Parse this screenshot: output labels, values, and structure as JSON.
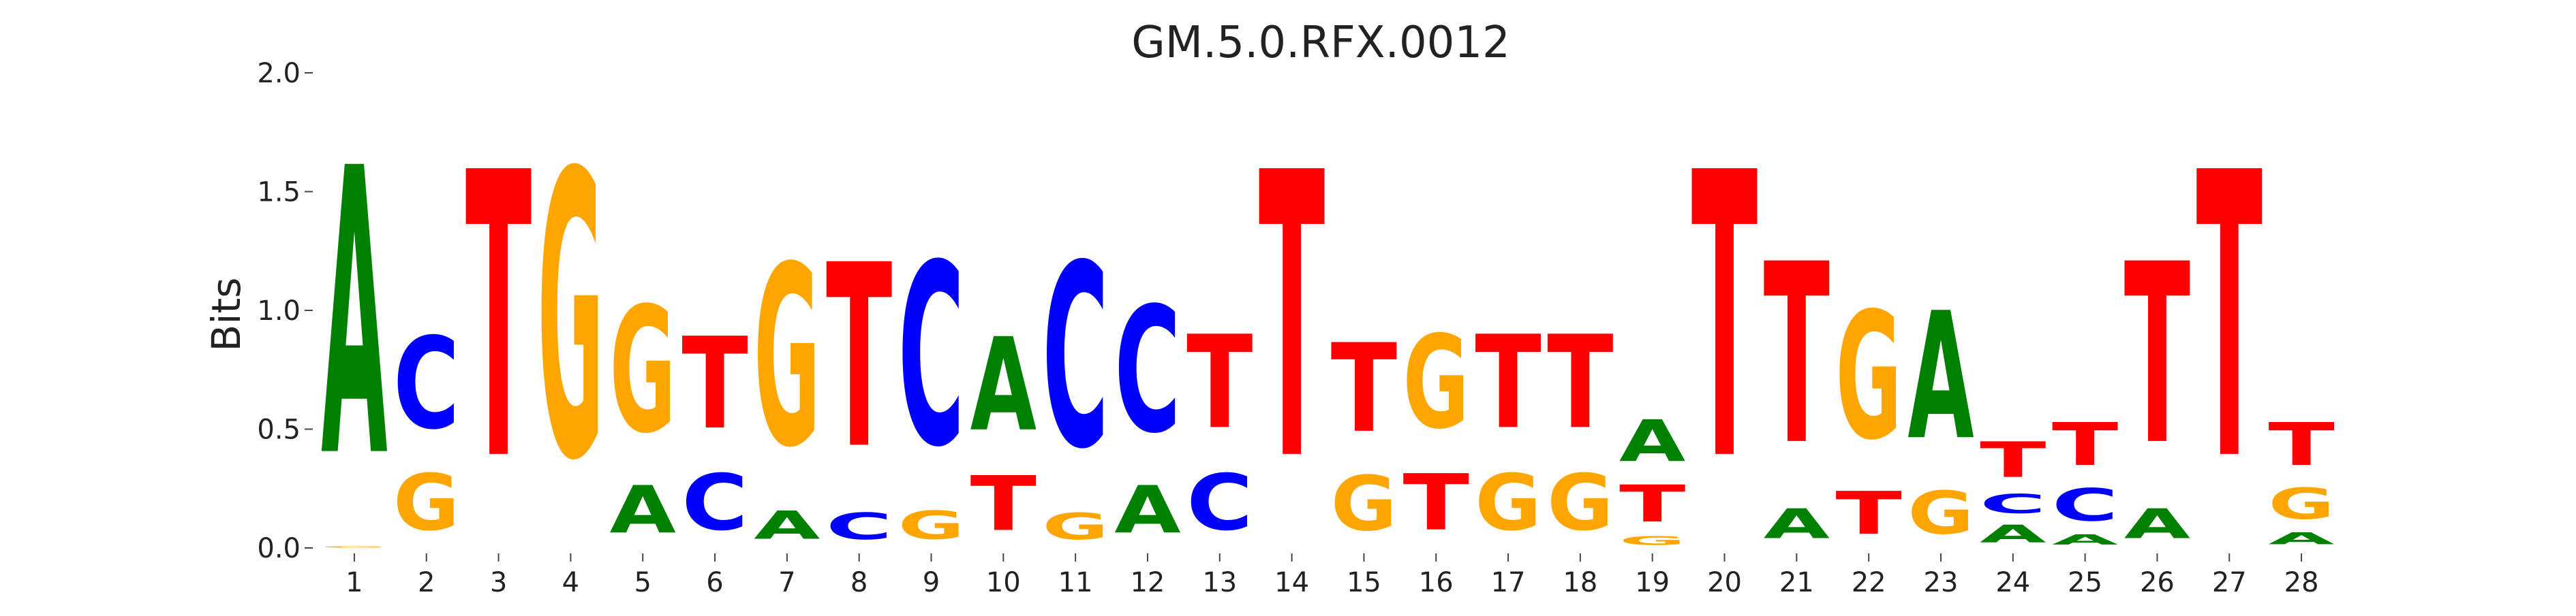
{
  "chart_data": {
    "type": "sequence-logo",
    "title": "GM.5.0.RFX.0012",
    "xlabel": "",
    "ylabel": "Bits",
    "ylim": [
      0,
      2.0
    ],
    "yticks": [
      "0.0",
      "0.5",
      "1.0",
      "1.5",
      "2.0"
    ],
    "grid": false,
    "colors": {
      "A": "#008000",
      "C": "#0000ff",
      "G": "#ffa500",
      "T": "#ff0000"
    },
    "positions": [
      {
        "label": "1",
        "letters": [
          [
            "G",
            0.01
          ],
          [
            "A",
            1.94
          ]
        ]
      },
      {
        "label": "2",
        "letters": [
          [
            "G",
            0.38
          ],
          [
            "C",
            0.62
          ]
        ]
      },
      {
        "label": "3",
        "letters": [
          [
            "T",
            1.93
          ]
        ]
      },
      {
        "label": "4",
        "letters": [
          [
            "G",
            1.93
          ]
        ]
      },
      {
        "label": "5",
        "letters": [
          [
            "A",
            0.32
          ],
          [
            "G",
            0.85
          ]
        ]
      },
      {
        "label": "6",
        "letters": [
          [
            "C",
            0.38
          ],
          [
            "T",
            0.62
          ]
        ]
      },
      {
        "label": "7",
        "letters": [
          [
            "A",
            0.19
          ],
          [
            "G",
            1.22
          ]
        ]
      },
      {
        "label": "8",
        "letters": [
          [
            "C",
            0.18
          ],
          [
            "T",
            1.24
          ]
        ]
      },
      {
        "label": "9",
        "letters": [
          [
            "G",
            0.19
          ],
          [
            "C",
            1.23
          ]
        ]
      },
      {
        "label": "10",
        "letters": [
          [
            "T",
            0.37
          ],
          [
            "A",
            0.63
          ]
        ]
      },
      {
        "label": "11",
        "letters": [
          [
            "G",
            0.18
          ],
          [
            "C",
            1.24
          ]
        ]
      },
      {
        "label": "12",
        "letters": [
          [
            "A",
            0.32
          ],
          [
            "C",
            0.85
          ]
        ]
      },
      {
        "label": "13",
        "letters": [
          [
            "C",
            0.38
          ],
          [
            "T",
            0.63
          ]
        ]
      },
      {
        "label": "14",
        "letters": [
          [
            "T",
            1.93
          ]
        ]
      },
      {
        "label": "15",
        "letters": [
          [
            "G",
            0.37
          ],
          [
            "T",
            0.6
          ]
        ]
      },
      {
        "label": "16",
        "letters": [
          [
            "T",
            0.38
          ],
          [
            "G",
            0.63
          ]
        ]
      },
      {
        "label": "17",
        "letters": [
          [
            "G",
            0.38
          ],
          [
            "T",
            0.63
          ]
        ]
      },
      {
        "label": "18",
        "letters": [
          [
            "G",
            0.38
          ],
          [
            "T",
            0.63
          ]
        ]
      },
      {
        "label": "19",
        "letters": [
          [
            "G",
            0.06
          ],
          [
            "T",
            0.25
          ],
          [
            "A",
            0.28
          ]
        ]
      },
      {
        "label": "20",
        "letters": [
          [
            "T",
            1.93
          ]
        ]
      },
      {
        "label": "21",
        "letters": [
          [
            "A",
            0.2
          ],
          [
            "T",
            1.22
          ]
        ]
      },
      {
        "label": "22",
        "letters": [
          [
            "T",
            0.29
          ],
          [
            "G",
            0.86
          ]
        ]
      },
      {
        "label": "23",
        "letters": [
          [
            "G",
            0.29
          ],
          [
            "A",
            0.86
          ]
        ]
      },
      {
        "label": "24",
        "letters": [
          [
            "A",
            0.12
          ],
          [
            "C",
            0.13
          ],
          [
            "T",
            0.24
          ]
        ]
      },
      {
        "label": "25",
        "letters": [
          [
            "A",
            0.07
          ],
          [
            "C",
            0.22
          ],
          [
            "T",
            0.29
          ]
        ]
      },
      {
        "label": "26",
        "letters": [
          [
            "A",
            0.2
          ],
          [
            "T",
            1.22
          ]
        ]
      },
      {
        "label": "27",
        "letters": [
          [
            "T",
            1.93
          ]
        ]
      },
      {
        "label": "28",
        "letters": [
          [
            "A",
            0.08
          ],
          [
            "G",
            0.21
          ],
          [
            "T",
            0.29
          ]
        ]
      }
    ]
  }
}
